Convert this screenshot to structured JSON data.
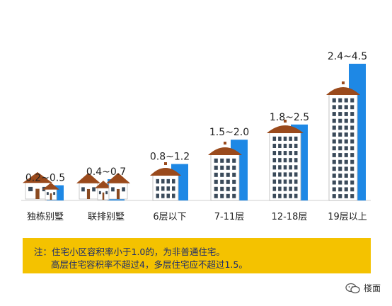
{
  "chart_data": {
    "type": "bar",
    "categories": [
      "独栋别墅",
      "联排别墅",
      "6层以下",
      "7-11层",
      "12-18层",
      "19层以上"
    ],
    "range_labels": [
      "0.2~0.5",
      "0.4~0.7",
      "0.8~1.2",
      "1.5~2.0",
      "1.8~2.5",
      "2.4~4.5"
    ],
    "series": [
      {
        "values": [
          0.5,
          0.7,
          1.2,
          2.0,
          2.5,
          4.5
        ]
      }
    ],
    "ylim": [
      0,
      4.5
    ],
    "grid": false,
    "colors": {
      "bar": "#1E88E5",
      "roof": "#9A4A1C",
      "building": "#ffffff",
      "window": "#3a4a5a",
      "note_bg": "#F4C200",
      "note_text": "#1d2c6b"
    },
    "icons": [
      "house-icon",
      "townhouse-icon",
      "building-icon"
    ]
  },
  "note": {
    "line1": "注：住宅小区容积率小于1.0的，为非普通住宅。",
    "line2": "高层住宅容积率不超过4，多层住宅应不超过1.5。"
  },
  "watermark": {
    "icon": "wechat-icon",
    "text": "楼面"
  }
}
